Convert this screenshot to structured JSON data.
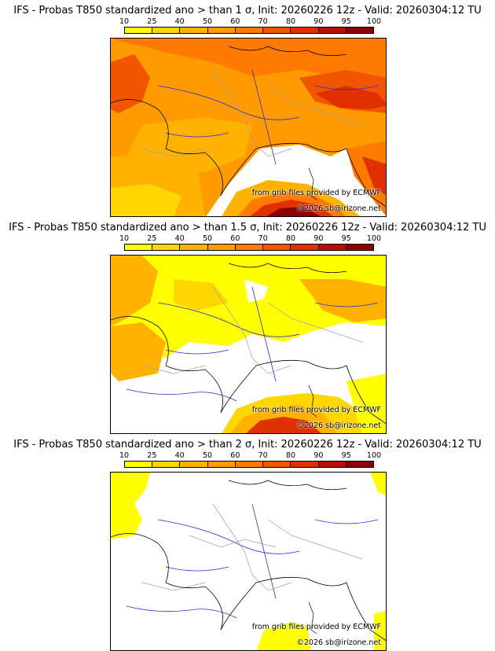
{
  "colorbar": {
    "levels": [
      "10",
      "25",
      "40",
      "50",
      "60",
      "70",
      "80",
      "90",
      "95",
      "100"
    ],
    "colors": [
      "#ffff00",
      "#ffd700",
      "#ffb300",
      "#ff9a00",
      "#ff7a00",
      "#f25500",
      "#e03000",
      "#b81000",
      "#8c0000"
    ]
  },
  "panels": [
    {
      "title": "IFS - Probas T850  standardized ano > than 1 σ, Init: 20260226 12z - Valid: 20260304:12 TU",
      "sigma": 1
    },
    {
      "title": "IFS - Probas T850  standardized ano > than 1.5 σ, Init: 20260226 12z - Valid: 20260304:12 TU",
      "sigma": 1.5
    },
    {
      "title": "IFS - Probas T850  standardized ano > than 2 σ, Init: 20260226 12z - Valid: 20260304:12 TU",
      "sigma": 2
    }
  ],
  "credits": {
    "source": "from grib files provided by ECMWF",
    "copyright": "©2026 sb@irizone.net"
  },
  "map_colors": {
    "coast": "#000000",
    "rivers": "#2b2bd6",
    "borders": "#a0a0a0",
    "sea": "#ffffff"
  }
}
